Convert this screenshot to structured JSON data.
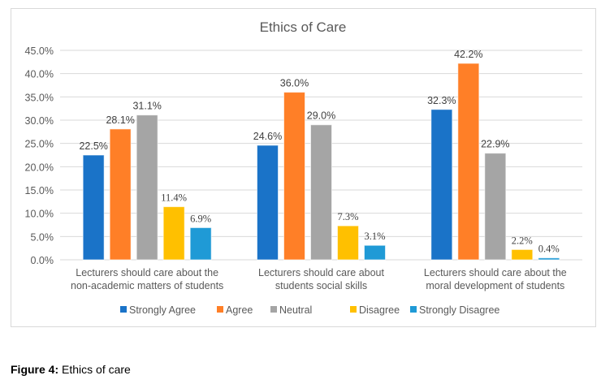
{
  "chart_data": {
    "type": "bar",
    "title": "Ethics of Care",
    "xlabel": "",
    "ylabel": "",
    "ylim": [
      0,
      45
    ],
    "yticks": [
      "0.0%",
      "5.0%",
      "10.0%",
      "15.0%",
      "20.0%",
      "25.0%",
      "30.0%",
      "35.0%",
      "40.0%",
      "45.0%"
    ],
    "grid": true,
    "legend_position": "bottom",
    "categories": [
      [
        "Lecturers should care about the",
        "non-academic matters of students"
      ],
      [
        "Lecturers should care about",
        "students social skills"
      ],
      [
        "Lecturers should care about the",
        "moral development of students"
      ]
    ],
    "series": [
      {
        "name": "Strongly Agree",
        "color": "#1a73c8",
        "values": [
          22.5,
          24.6,
          32.3
        ],
        "labels": [
          "22.5%",
          "24.6%",
          "32.3%"
        ]
      },
      {
        "name": "Agree",
        "color": "#ff7f27",
        "values": [
          28.1,
          36.0,
          42.2
        ],
        "labels": [
          "28.1%",
          "36.0%",
          "42.2%"
        ]
      },
      {
        "name": "Neutral",
        "color": "#a5a5a5",
        "values": [
          31.1,
          29.0,
          22.9
        ],
        "labels": [
          "31.1%",
          "29.0%",
          "22.9%"
        ]
      },
      {
        "name": "Disagree",
        "color": "#ffc000",
        "values": [
          11.4,
          7.3,
          2.2
        ],
        "labels": [
          "11.4%",
          "7.3%",
          "2.2%"
        ]
      },
      {
        "name": "Strongly Disagree",
        "color": "#1f9ad6",
        "values": [
          6.9,
          3.1,
          0.4
        ],
        "labels": [
          "6.9%",
          "3.1%",
          "0.4%"
        ]
      }
    ]
  },
  "caption": {
    "label": "Figure 4:",
    "text": " Ethics of care"
  }
}
